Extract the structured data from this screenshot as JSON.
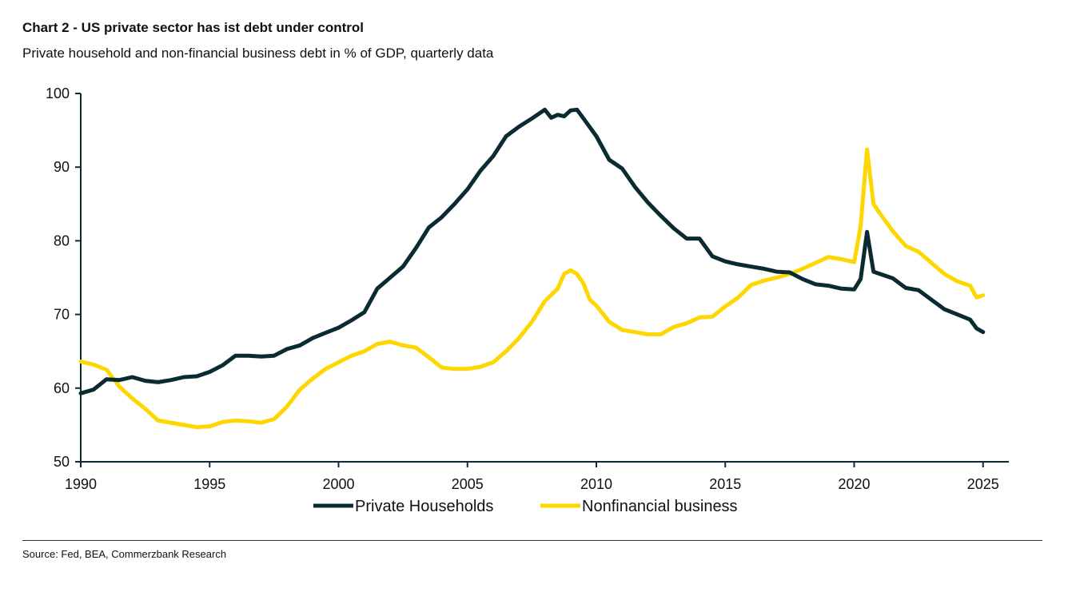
{
  "title": "Chart 2 - US private sector has ist debt under control",
  "subtitle": "Private household and non-financial business debt in % of GDP, quarterly data",
  "source": "Source: Fed, BEA, Commerzbank Research",
  "colors": {
    "households": "#0b2b33",
    "business": "#ffd700",
    "axis": "#0b2b33"
  },
  "chart_data": {
    "type": "line",
    "ylim": [
      50,
      100
    ],
    "xlim": [
      1990,
      2026
    ],
    "yticks": [
      50,
      60,
      70,
      80,
      90,
      100
    ],
    "xticks": [
      1990,
      1995,
      2000,
      2005,
      2010,
      2015,
      2020,
      2025
    ],
    "ytick_labels": [
      "50",
      "60",
      "70",
      "80",
      "90",
      "100"
    ],
    "xtick_labels": [
      "1990",
      "1995",
      "2000",
      "2005",
      "2010",
      "2015",
      "2020",
      "2025"
    ],
    "legend_position": "bottom",
    "grid": false,
    "series": [
      {
        "name": "Private Households",
        "color": "#0b2b33",
        "points": [
          [
            1990.0,
            59.3
          ],
          [
            1990.5,
            59.8
          ],
          [
            1991.0,
            61.2
          ],
          [
            1991.5,
            61.1
          ],
          [
            1992.0,
            61.5
          ],
          [
            1992.5,
            61.0
          ],
          [
            1993.0,
            60.8
          ],
          [
            1993.5,
            61.1
          ],
          [
            1994.0,
            61.5
          ],
          [
            1994.5,
            61.6
          ],
          [
            1995.0,
            62.2
          ],
          [
            1995.5,
            63.1
          ],
          [
            1996.0,
            64.4
          ],
          [
            1996.5,
            64.4
          ],
          [
            1997.0,
            64.3
          ],
          [
            1997.5,
            64.4
          ],
          [
            1998.0,
            65.3
          ],
          [
            1998.5,
            65.8
          ],
          [
            1999.0,
            66.8
          ],
          [
            1999.5,
            67.5
          ],
          [
            2000.0,
            68.2
          ],
          [
            2000.5,
            69.2
          ],
          [
            2001.0,
            70.3
          ],
          [
            2001.5,
            73.5
          ],
          [
            2002.0,
            75.0
          ],
          [
            2002.5,
            76.5
          ],
          [
            2003.0,
            79.0
          ],
          [
            2003.5,
            81.8
          ],
          [
            2004.0,
            83.2
          ],
          [
            2004.5,
            85.0
          ],
          [
            2005.0,
            87.0
          ],
          [
            2005.5,
            89.5
          ],
          [
            2006.0,
            91.5
          ],
          [
            2006.5,
            94.2
          ],
          [
            2007.0,
            95.5
          ],
          [
            2007.5,
            96.6
          ],
          [
            2008.0,
            97.8
          ],
          [
            2008.25,
            96.7
          ],
          [
            2008.5,
            97.1
          ],
          [
            2008.75,
            96.9
          ],
          [
            2009.0,
            97.7
          ],
          [
            2009.25,
            97.8
          ],
          [
            2009.5,
            96.6
          ],
          [
            2010.0,
            94.2
          ],
          [
            2010.5,
            91.0
          ],
          [
            2011.0,
            89.8
          ],
          [
            2011.5,
            87.3
          ],
          [
            2012.0,
            85.2
          ],
          [
            2012.5,
            83.4
          ],
          [
            2013.0,
            81.7
          ],
          [
            2013.5,
            80.3
          ],
          [
            2014.0,
            80.3
          ],
          [
            2014.5,
            77.9
          ],
          [
            2015.0,
            77.2
          ],
          [
            2015.5,
            76.8
          ],
          [
            2016.0,
            76.5
          ],
          [
            2016.5,
            76.2
          ],
          [
            2017.0,
            75.8
          ],
          [
            2017.5,
            75.7
          ],
          [
            2018.0,
            74.8
          ],
          [
            2018.5,
            74.1
          ],
          [
            2019.0,
            73.9
          ],
          [
            2019.5,
            73.5
          ],
          [
            2020.0,
            73.4
          ],
          [
            2020.25,
            74.8
          ],
          [
            2020.5,
            81.2
          ],
          [
            2020.75,
            75.8
          ],
          [
            2021.0,
            75.5
          ],
          [
            2021.5,
            74.9
          ],
          [
            2022.0,
            73.6
          ],
          [
            2022.5,
            73.3
          ],
          [
            2023.0,
            72.0
          ],
          [
            2023.5,
            70.7
          ],
          [
            2024.0,
            70.0
          ],
          [
            2024.5,
            69.3
          ],
          [
            2024.75,
            68.1
          ],
          [
            2025.0,
            67.6
          ]
        ]
      },
      {
        "name": "Nonfinancial business",
        "color": "#ffd700",
        "points": [
          [
            1990.0,
            63.6
          ],
          [
            1990.5,
            63.2
          ],
          [
            1991.0,
            62.5
          ],
          [
            1991.5,
            60.2
          ],
          [
            1992.0,
            58.6
          ],
          [
            1992.5,
            57.2
          ],
          [
            1993.0,
            55.6
          ],
          [
            1993.5,
            55.3
          ],
          [
            1994.0,
            55.0
          ],
          [
            1994.5,
            54.7
          ],
          [
            1995.0,
            54.8
          ],
          [
            1995.5,
            55.4
          ],
          [
            1996.0,
            55.6
          ],
          [
            1996.5,
            55.5
          ],
          [
            1997.0,
            55.3
          ],
          [
            1997.5,
            55.8
          ],
          [
            1998.0,
            57.5
          ],
          [
            1998.5,
            59.8
          ],
          [
            1999.0,
            61.3
          ],
          [
            1999.5,
            62.6
          ],
          [
            2000.0,
            63.5
          ],
          [
            2000.5,
            64.4
          ],
          [
            2001.0,
            65.0
          ],
          [
            2001.5,
            66.0
          ],
          [
            2002.0,
            66.3
          ],
          [
            2002.5,
            65.8
          ],
          [
            2003.0,
            65.5
          ],
          [
            2003.5,
            64.2
          ],
          [
            2004.0,
            62.8
          ],
          [
            2004.5,
            62.6
          ],
          [
            2005.0,
            62.6
          ],
          [
            2005.5,
            62.9
          ],
          [
            2006.0,
            63.5
          ],
          [
            2006.5,
            65.0
          ],
          [
            2007.0,
            66.8
          ],
          [
            2007.5,
            69.0
          ],
          [
            2008.0,
            71.8
          ],
          [
            2008.5,
            73.5
          ],
          [
            2008.75,
            75.5
          ],
          [
            2009.0,
            76.0
          ],
          [
            2009.25,
            75.5
          ],
          [
            2009.5,
            74.2
          ],
          [
            2009.75,
            72.0
          ],
          [
            2010.0,
            71.2
          ],
          [
            2010.5,
            69.0
          ],
          [
            2011.0,
            67.9
          ],
          [
            2011.5,
            67.6
          ],
          [
            2012.0,
            67.3
          ],
          [
            2012.5,
            67.3
          ],
          [
            2013.0,
            68.3
          ],
          [
            2013.5,
            68.8
          ],
          [
            2014.0,
            69.6
          ],
          [
            2014.5,
            69.7
          ],
          [
            2015.0,
            71.1
          ],
          [
            2015.5,
            72.3
          ],
          [
            2016.0,
            74.0
          ],
          [
            2016.5,
            74.6
          ],
          [
            2017.0,
            75.0
          ],
          [
            2017.5,
            75.5
          ],
          [
            2018.0,
            76.2
          ],
          [
            2018.5,
            77.0
          ],
          [
            2019.0,
            77.8
          ],
          [
            2019.5,
            77.5
          ],
          [
            2020.0,
            77.1
          ],
          [
            2020.25,
            82.0
          ],
          [
            2020.5,
            92.4
          ],
          [
            2020.75,
            85.0
          ],
          [
            2021.0,
            83.7
          ],
          [
            2021.5,
            81.3
          ],
          [
            2022.0,
            79.3
          ],
          [
            2022.5,
            78.5
          ],
          [
            2023.0,
            77.0
          ],
          [
            2023.5,
            75.5
          ],
          [
            2024.0,
            74.5
          ],
          [
            2024.5,
            73.9
          ],
          [
            2024.75,
            72.3
          ],
          [
            2025.0,
            72.6
          ]
        ]
      }
    ]
  }
}
